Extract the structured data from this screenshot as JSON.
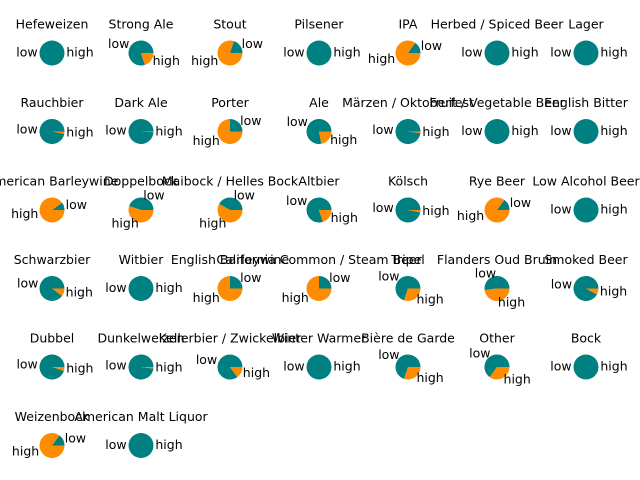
{
  "chart_data": [
    {
      "type": "pie",
      "title": "Hefeweizen",
      "categories": [
        "low",
        "high"
      ],
      "values": [
        100,
        0
      ],
      "colors": [
        "#008080",
        "#ff8c00"
      ]
    },
    {
      "type": "pie",
      "title": "Strong Ale",
      "categories": [
        "low",
        "high"
      ],
      "values": [
        80,
        20
      ],
      "colors": [
        "#008080",
        "#ff8c00"
      ]
    },
    {
      "type": "pie",
      "title": "Stout",
      "categories": [
        "low",
        "high"
      ],
      "values": [
        20,
        80
      ],
      "colors": [
        "#008080",
        "#ff8c00"
      ]
    },
    {
      "type": "pie",
      "title": "Pilsener",
      "categories": [
        "low",
        "high"
      ],
      "values": [
        100,
        0
      ],
      "colors": [
        "#008080",
        "#ff8c00"
      ]
    },
    {
      "type": "pie",
      "title": "IPA",
      "categories": [
        "low",
        "high"
      ],
      "values": [
        15,
        85
      ],
      "colors": [
        "#008080",
        "#ff8c00"
      ]
    },
    {
      "type": "pie",
      "title": "Herbed / Spiced Beer",
      "categories": [
        "low",
        "high"
      ],
      "values": [
        100,
        0
      ],
      "colors": [
        "#008080",
        "#ff8c00"
      ]
    },
    {
      "type": "pie",
      "title": "Lager",
      "categories": [
        "low",
        "high"
      ],
      "values": [
        100,
        0
      ],
      "colors": [
        "#008080",
        "#ff8c00"
      ]
    },
    {
      "type": "pie",
      "title": "Rauchbier",
      "categories": [
        "low",
        "high"
      ],
      "values": [
        97,
        3
      ],
      "colors": [
        "#008080",
        "#ff8c00"
      ]
    },
    {
      "type": "pie",
      "title": "Dark Ale",
      "categories": [
        "low",
        "high"
      ],
      "values": [
        99,
        1
      ],
      "colors": [
        "#008080",
        "#ff8c00"
      ]
    },
    {
      "type": "pie",
      "title": "Porter",
      "categories": [
        "low",
        "high"
      ],
      "values": [
        25,
        75
      ],
      "colors": [
        "#008080",
        "#ff8c00"
      ]
    },
    {
      "type": "pie",
      "title": "Ale",
      "categories": [
        "low",
        "high"
      ],
      "values": [
        78,
        22
      ],
      "colors": [
        "#008080",
        "#ff8c00"
      ]
    },
    {
      "type": "pie",
      "title": "Märzen / Oktoberfest",
      "categories": [
        "low",
        "high"
      ],
      "values": [
        98,
        2
      ],
      "colors": [
        "#008080",
        "#ff8c00"
      ]
    },
    {
      "type": "pie",
      "title": "Fruit / Vegetable Beer",
      "categories": [
        "low",
        "high"
      ],
      "values": [
        100,
        0
      ],
      "colors": [
        "#008080",
        "#ff8c00"
      ]
    },
    {
      "type": "pie",
      "title": "English Bitter",
      "categories": [
        "low",
        "high"
      ],
      "values": [
        100,
        0
      ],
      "colors": [
        "#008080",
        "#ff8c00"
      ]
    },
    {
      "type": "pie",
      "title": "American Barleywine",
      "categories": [
        "low",
        "high"
      ],
      "values": [
        10,
        90
      ],
      "colors": [
        "#008080",
        "#ff8c00"
      ]
    },
    {
      "type": "pie",
      "title": "Doppelbock",
      "categories": [
        "low",
        "high"
      ],
      "values": [
        45,
        55
      ],
      "colors": [
        "#008080",
        "#ff8c00"
      ]
    },
    {
      "type": "pie",
      "title": "Maibock / Helles Bock",
      "categories": [
        "low",
        "high"
      ],
      "values": [
        42,
        58
      ],
      "colors": [
        "#008080",
        "#ff8c00"
      ]
    },
    {
      "type": "pie",
      "title": "Altbier",
      "categories": [
        "low",
        "high"
      ],
      "values": [
        80,
        20
      ],
      "colors": [
        "#008080",
        "#ff8c00"
      ]
    },
    {
      "type": "pie",
      "title": "Kölsch",
      "categories": [
        "low",
        "high"
      ],
      "values": [
        97,
        3
      ],
      "colors": [
        "#008080",
        "#ff8c00"
      ]
    },
    {
      "type": "pie",
      "title": "Rye Beer",
      "categories": [
        "low",
        "high"
      ],
      "values": [
        15,
        85
      ],
      "colors": [
        "#008080",
        "#ff8c00"
      ]
    },
    {
      "type": "pie",
      "title": "Low Alcohol Beer",
      "categories": [
        "low",
        "high"
      ],
      "values": [
        100,
        0
      ],
      "colors": [
        "#008080",
        "#ff8c00"
      ]
    },
    {
      "type": "pie",
      "title": "Schwarzbier",
      "categories": [
        "low",
        "high"
      ],
      "values": [
        90,
        10
      ],
      "colors": [
        "#008080",
        "#ff8c00"
      ]
    },
    {
      "type": "pie",
      "title": "Witbier",
      "categories": [
        "low",
        "high"
      ],
      "values": [
        100,
        0
      ],
      "colors": [
        "#008080",
        "#ff8c00"
      ]
    },
    {
      "type": "pie",
      "title": "English Barleywine",
      "categories": [
        "low",
        "high"
      ],
      "values": [
        25,
        75
      ],
      "colors": [
        "#008080",
        "#ff8c00"
      ]
    },
    {
      "type": "pie",
      "title": "California Common / Steam Beer",
      "categories": [
        "low",
        "high"
      ],
      "values": [
        25,
        75
      ],
      "colors": [
        "#008080",
        "#ff8c00"
      ]
    },
    {
      "type": "pie",
      "title": "Tripel",
      "categories": [
        "low",
        "high"
      ],
      "values": [
        70,
        30
      ],
      "colors": [
        "#008080",
        "#ff8c00"
      ]
    },
    {
      "type": "pie",
      "title": "Flanders Oud Bruin",
      "categories": [
        "low",
        "high"
      ],
      "values": [
        52,
        48
      ],
      "colors": [
        "#008080",
        "#ff8c00"
      ]
    },
    {
      "type": "pie",
      "title": "Smoked Beer",
      "categories": [
        "low",
        "high"
      ],
      "values": [
        92,
        8
      ],
      "colors": [
        "#008080",
        "#ff8c00"
      ]
    },
    {
      "type": "pie",
      "title": "Dubbel",
      "categories": [
        "low",
        "high"
      ],
      "values": [
        95,
        5
      ],
      "colors": [
        "#008080",
        "#ff8c00"
      ]
    },
    {
      "type": "pie",
      "title": "Dunkelweizen",
      "categories": [
        "low",
        "high"
      ],
      "values": [
        98,
        2
      ],
      "colors": [
        "#008080",
        "#ff8c00"
      ]
    },
    {
      "type": "pie",
      "title": "Kellerbier / Zwickelbier",
      "categories": [
        "low",
        "high"
      ],
      "values": [
        85,
        15
      ],
      "colors": [
        "#008080",
        "#ff8c00"
      ]
    },
    {
      "type": "pie",
      "title": "Winter Warmer",
      "categories": [
        "low",
        "high"
      ],
      "values": [
        100,
        0
      ],
      "colors": [
        "#008080",
        "#ff8c00"
      ]
    },
    {
      "type": "pie",
      "title": "Bière de Garde",
      "categories": [
        "low",
        "high"
      ],
      "values": [
        70,
        30
      ],
      "colors": [
        "#008080",
        "#ff8c00"
      ]
    },
    {
      "type": "pie",
      "title": "Other",
      "categories": [
        "low",
        "high"
      ],
      "values": [
        65,
        35
      ],
      "colors": [
        "#008080",
        "#ff8c00"
      ]
    },
    {
      "type": "pie",
      "title": "Bock",
      "categories": [
        "low",
        "high"
      ],
      "values": [
        100,
        0
      ],
      "colors": [
        "#008080",
        "#ff8c00"
      ]
    },
    {
      "type": "pie",
      "title": "Weizenbock",
      "categories": [
        "low",
        "high"
      ],
      "values": [
        15,
        85
      ],
      "colors": [
        "#008080",
        "#ff8c00"
      ]
    },
    {
      "type": "pie",
      "title": "American Malt Liquor",
      "categories": [
        "low",
        "high"
      ],
      "values": [
        100,
        0
      ],
      "colors": [
        "#008080",
        "#ff8c00"
      ]
    }
  ]
}
